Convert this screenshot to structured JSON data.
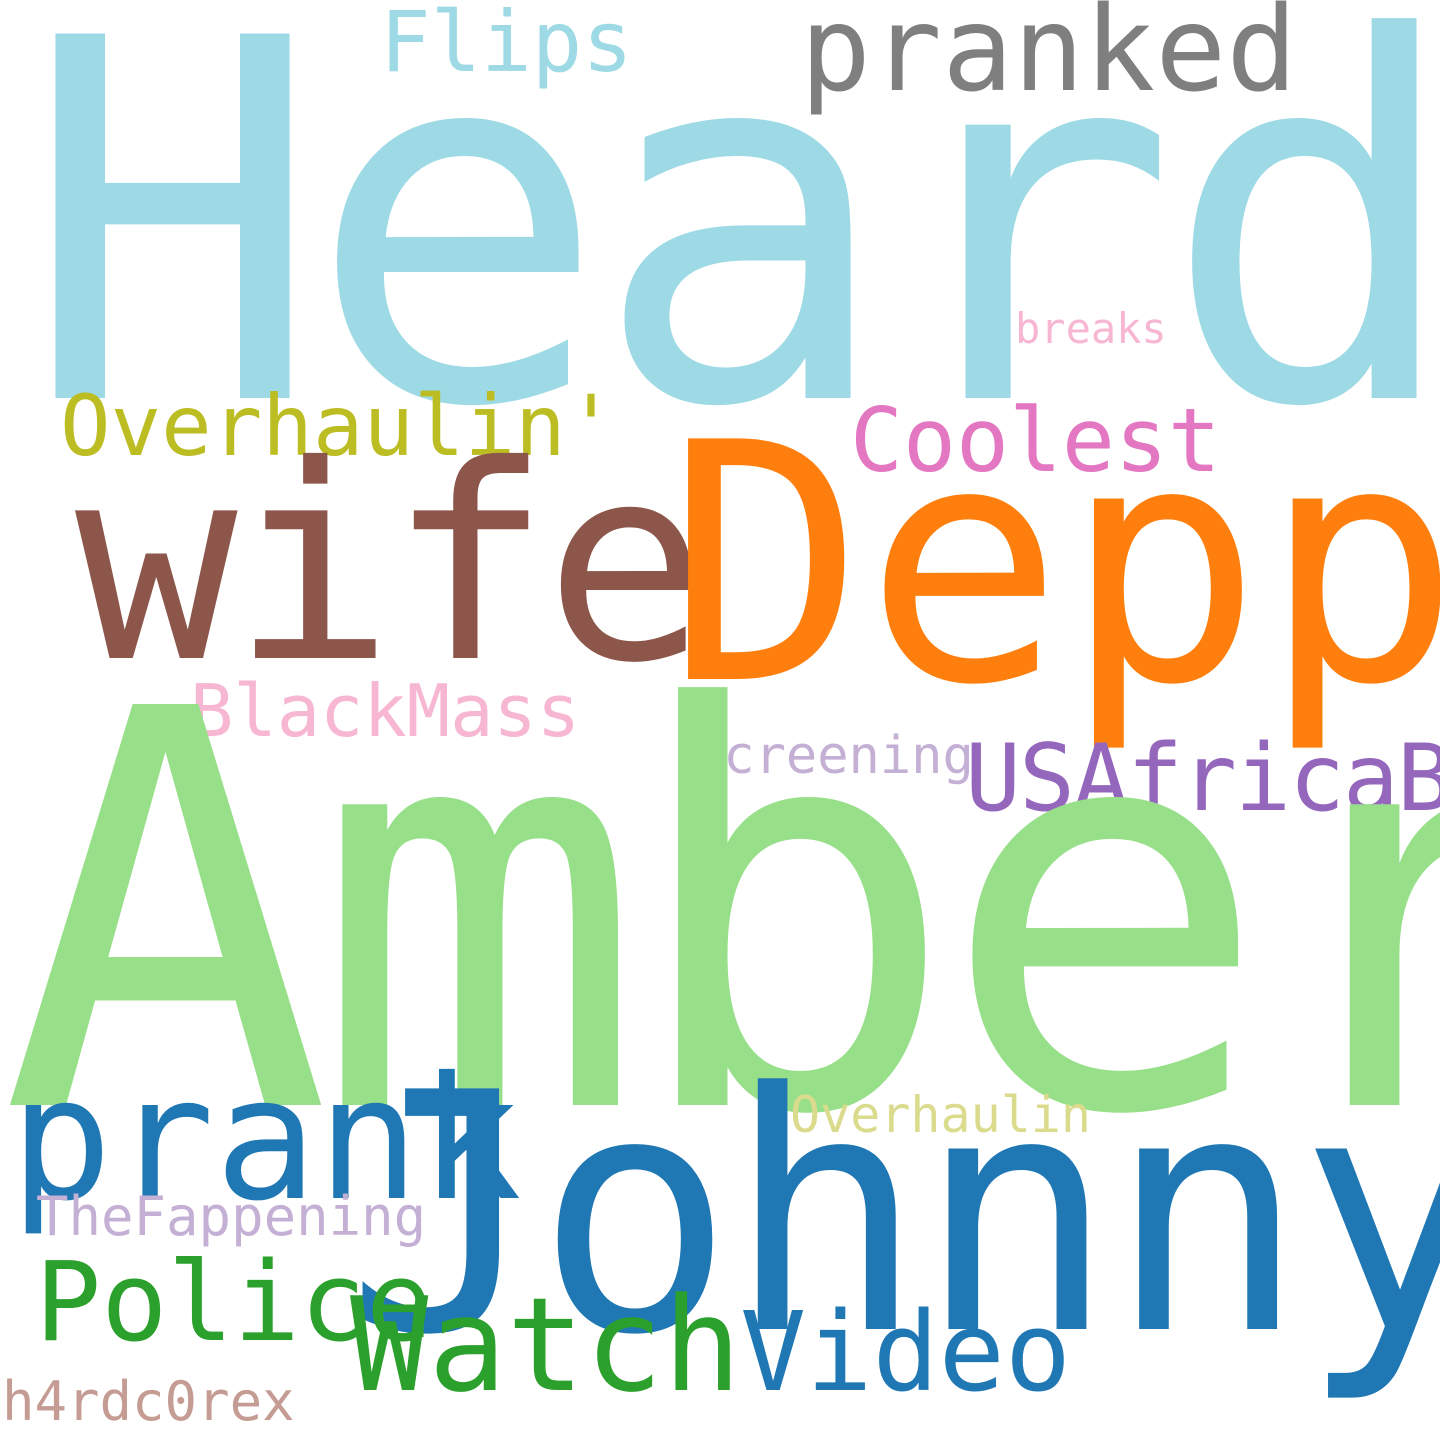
{
  "words": {
    "heard": {
      "text": "Heard",
      "color": "#9edae5"
    },
    "amber": {
      "text": "Amber",
      "color": "#98df8a"
    },
    "depp": {
      "text": "Depp",
      "color": "#ff7f0e"
    },
    "johnny": {
      "text": "Johnny",
      "color": "#1f77b4"
    },
    "wife": {
      "text": "wife",
      "color": "#8c564b"
    },
    "prank": {
      "text": "prank",
      "color": "#1f77b4"
    },
    "pranked": {
      "text": "pranked",
      "color": "#7f7f7f"
    },
    "watch": {
      "text": "Watch",
      "color": "#2ca02c"
    },
    "police": {
      "text": "Police",
      "color": "#2ca02c"
    },
    "usafricabf": {
      "text": "USAfricaBF",
      "color": "#9467bd"
    },
    "video": {
      "text": "Video",
      "color": "#1f77b4"
    },
    "overhaulin_q": {
      "text": "Overhaulin'",
      "color": "#bcbd22"
    },
    "coolest": {
      "text": "Coolest",
      "color": "#e377c2"
    },
    "blackmass": {
      "text": "BlackMass",
      "color": "#f7b6d2"
    },
    "flips": {
      "text": "Flips",
      "color": "#9edae5"
    },
    "overhaulin": {
      "text": "Overhaulin",
      "color": "#dbdb8d"
    },
    "thefappening": {
      "text": "TheFappening",
      "color": "#c5b0d5"
    },
    "screening": {
      "text": "screening",
      "color": "#c5b0d5"
    },
    "breaks": {
      "text": "breaks",
      "color": "#f7b6d2"
    },
    "h4rdc0rex": {
      "text": "h4rdc0rex",
      "color": "#c49c94"
    }
  }
}
